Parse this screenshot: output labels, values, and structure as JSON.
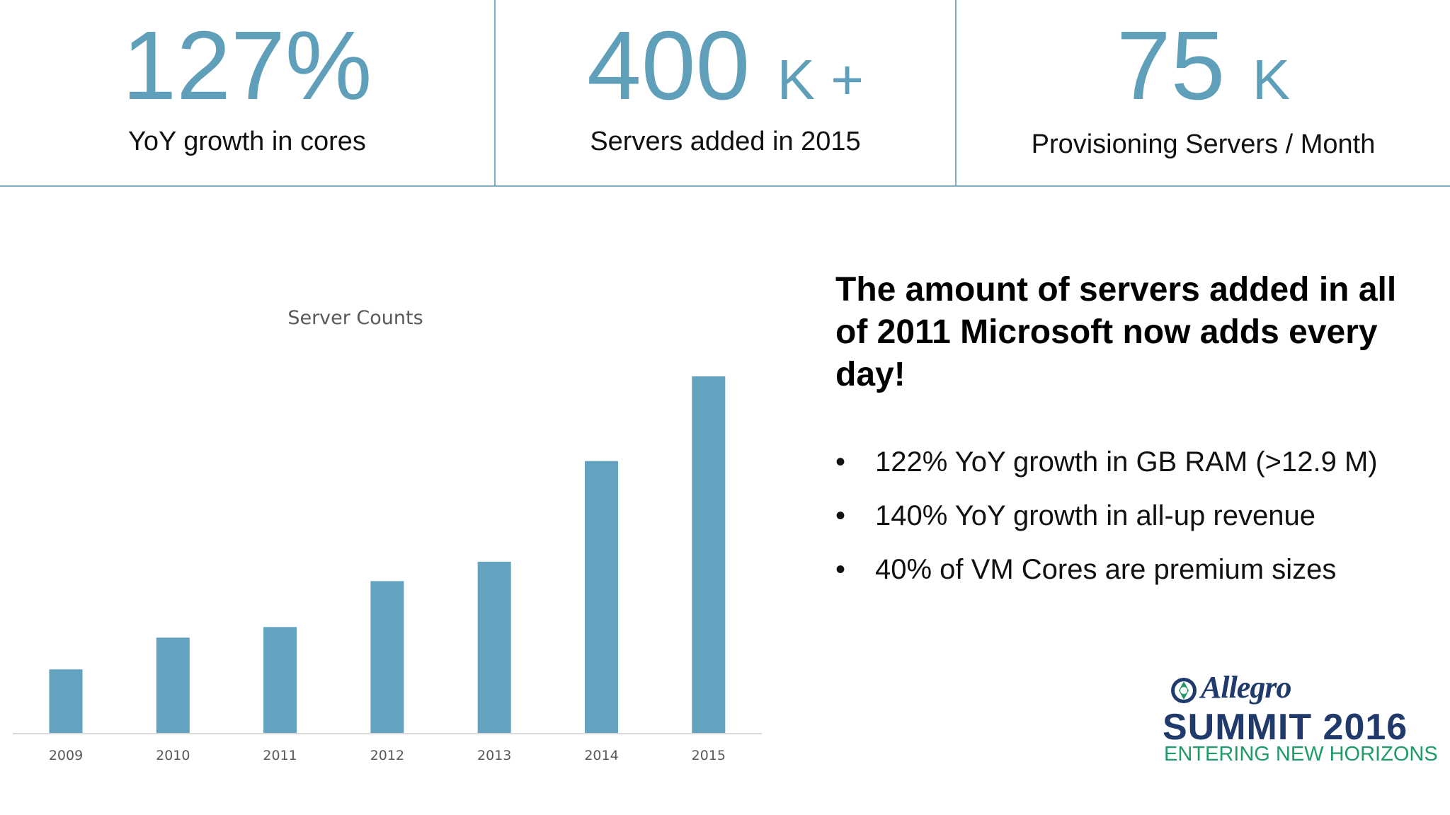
{
  "stats": [
    {
      "number": "127%",
      "suffix": "",
      "label": "YoY growth in cores"
    },
    {
      "number": "400",
      "suffix": "K +",
      "label": "Servers added in 2015"
    },
    {
      "number": "75",
      "suffix": "K",
      "label": "Provisioning Servers / Month"
    }
  ],
  "headline": "The amount of servers added in all of 2011 Microsoft now adds every day!",
  "bullets": [
    "122% YoY growth in GB RAM (>12.9 M)",
    "140% YoY growth in all-up revenue",
    "40% of VM Cores are premium sizes"
  ],
  "bullet_glyph": "•",
  "logo": {
    "brand": "Allegro",
    "event": "SUMMIT 2016",
    "tagline": "ENTERING NEW HORIZONS",
    "colors": {
      "navy": "#1f3a6b",
      "green": "#1f9a68"
    }
  },
  "colors": {
    "accent": "#5f9fba",
    "bar": "#64a3c0",
    "divider": "#7eaec6"
  },
  "chart_data": {
    "type": "bar",
    "title": "Server Counts",
    "categories": [
      "2009",
      "2010",
      "2011",
      "2012",
      "2013",
      "2014",
      "2015"
    ],
    "values": [
      18,
      27,
      30,
      43,
      48.5,
      77,
      101
    ],
    "ylim": [
      0,
      105
    ],
    "xlabel": "",
    "ylabel": "",
    "grid": false,
    "legend": "none",
    "y_axis_visible": false
  }
}
